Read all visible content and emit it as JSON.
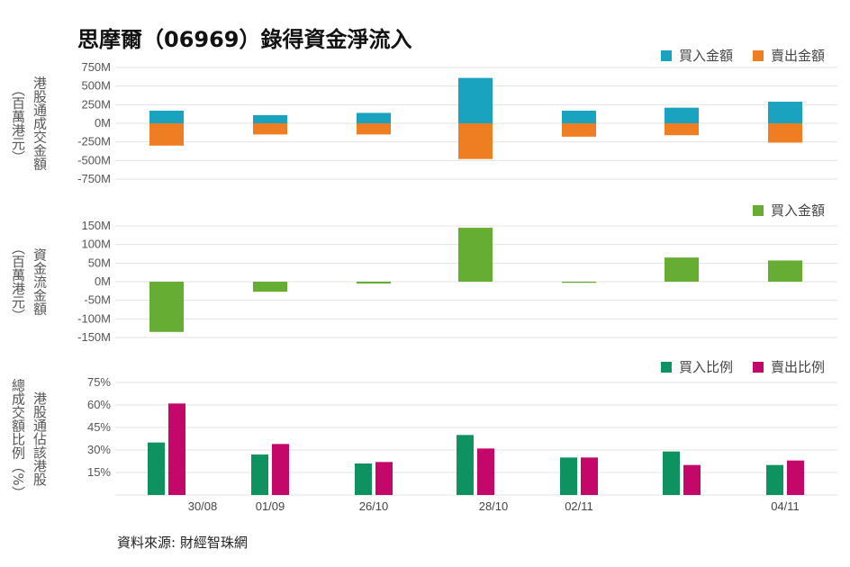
{
  "title": "思摩爾（06969）錄得資金淨流入",
  "source": "資料來源: 財經智珠網",
  "x_labels": [
    "30/08",
    "01/09",
    "26/10",
    "28/10",
    "02/11",
    "",
    "04/11"
  ],
  "chart_data": [
    {
      "type": "bar",
      "ylabel": [
        "港股通成交金額",
        "（百萬港元）"
      ],
      "yticks": [
        "750M",
        "500M",
        "250M",
        "0M",
        "-250M",
        "-500M",
        "-750M"
      ],
      "ylim": [
        -750,
        750
      ],
      "legend_position": "top-right",
      "series": [
        {
          "name": "買入金額",
          "color": "#1aa3bf",
          "values": [
            170,
            110,
            140,
            610,
            170,
            210,
            290
          ]
        },
        {
          "name": "賣出金額",
          "color": "#ef7d22",
          "values": [
            -300,
            -150,
            -150,
            -480,
            -180,
            -160,
            -260
          ]
        }
      ]
    },
    {
      "type": "bar",
      "ylabel": [
        "資金流金額",
        "（百萬港元）"
      ],
      "yticks": [
        "150M",
        "100M",
        "50M",
        "0M",
        "-50M",
        "-100M",
        "-150M"
      ],
      "ylim": [
        -150,
        150
      ],
      "legend_position": "top-right",
      "series": [
        {
          "name": "買入金額",
          "color": "#66ad34",
          "values": [
            -135,
            -27,
            -5,
            145,
            -3,
            65,
            57
          ]
        }
      ]
    },
    {
      "type": "bar",
      "ylabel": [
        "港股通佔該港股",
        "總成交額比例（%）"
      ],
      "yticks": [
        "75%",
        "60%",
        "45%",
        "30%",
        "15%"
      ],
      "ylim": [
        0,
        75
      ],
      "legend_position": "top-right",
      "series": [
        {
          "name": "買入比例",
          "color": "#0e9360",
          "values": [
            35,
            27,
            21,
            40,
            25,
            29,
            20
          ]
        },
        {
          "name": "賣出比例",
          "color": "#c4086a",
          "values": [
            61,
            34,
            22,
            31,
            25,
            20,
            23
          ]
        }
      ]
    }
  ]
}
